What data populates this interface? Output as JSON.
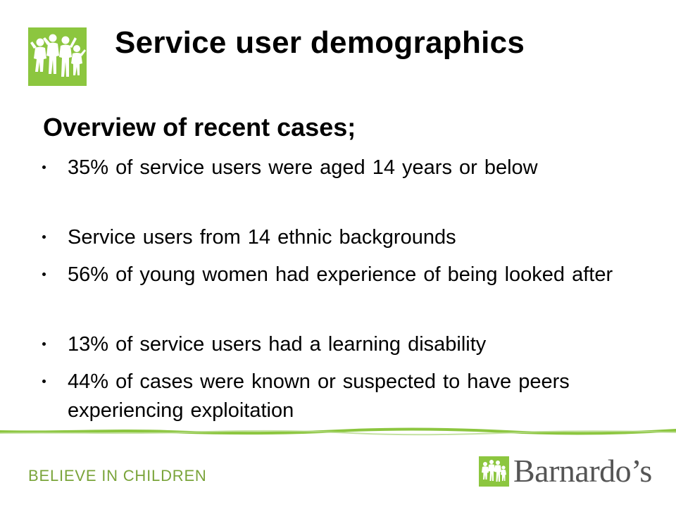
{
  "header": {
    "title": "Service user demographics",
    "logo_icon": "children-figures-logo-icon"
  },
  "main": {
    "subheading": "Overview of recent cases;",
    "bullets": [
      {
        "text": "35% of service users were aged 14 years or below"
      },
      {
        "text": "Service users from 14 ethnic backgrounds"
      },
      {
        "text": "56% of young women had experience of being looked after"
      },
      {
        "text": "13% of service users had a learning disability"
      },
      {
        "text": "44% of cases were known or suspected to have peers experiencing exploitation"
      }
    ]
  },
  "footer": {
    "tagline": "BELIEVE IN CHILDREN",
    "brand_name": "Barnardo’s",
    "brand_icon": "barnardos-figures-icon"
  },
  "colors": {
    "brand_green": "#8cc63f",
    "tagline_green": "#7aa43a",
    "text": "#000000",
    "brand_text": "#555555"
  }
}
